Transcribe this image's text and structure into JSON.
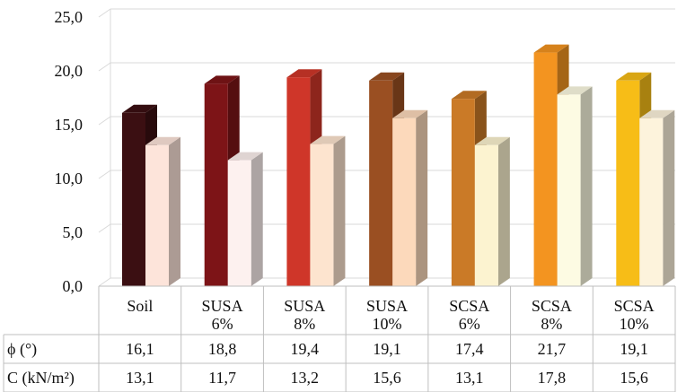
{
  "chart_data": {
    "type": "bar",
    "style": "3d-clustered-column-with-data-table",
    "categories": [
      [
        "Soil"
      ],
      [
        "SUSA",
        "6%"
      ],
      [
        "SUSA",
        "8%"
      ],
      [
        "SUSA",
        "10%"
      ],
      [
        "SCSA",
        "6%"
      ],
      [
        "SCSA",
        "8%"
      ],
      [
        "SCSA",
        "10%"
      ]
    ],
    "series": [
      {
        "name": "ϕ (°)",
        "values": [
          16.1,
          18.8,
          19.4,
          19.1,
          17.4,
          21.7,
          19.1
        ],
        "labels": [
          "16,1",
          "18,8",
          "19,4",
          "19,1",
          "17,4",
          "21,7",
          "19,1"
        ],
        "colors": [
          "#3b0f12",
          "#7d1417",
          "#cf3629",
          "#9a4f22",
          "#ca7a27",
          "#f39420",
          "#f7bd17"
        ]
      },
      {
        "name": "C (kN/m²)",
        "values": [
          13.1,
          11.7,
          13.2,
          15.6,
          13.1,
          17.8,
          15.6
        ],
        "labels": [
          "13,1",
          "11,7",
          "13,2",
          "15,6",
          "13,1",
          "17,8",
          "15,6"
        ],
        "colors": [
          "#fde4da",
          "#fdf1ef",
          "#fde4cf",
          "#fcd9bb",
          "#fcf3d0",
          "#fdfbe3",
          "#fdf3dc"
        ]
      }
    ],
    "ylim": [
      0,
      25
    ],
    "yticks": [
      0,
      5,
      10,
      15,
      20,
      25
    ],
    "ytick_labels": [
      "0,0",
      "5,0",
      "10,0",
      "15,0",
      "20,0",
      "25,0"
    ],
    "grid": true,
    "legend": "data-table"
  }
}
